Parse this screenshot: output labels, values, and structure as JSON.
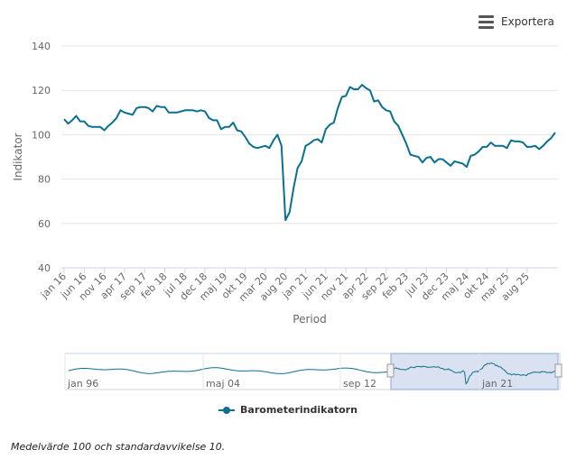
{
  "toolbar": {
    "export_label": "Exportera",
    "menu_icon": "hamburger-menu-icon"
  },
  "footnote": "Medelvärde 100 och standardavvikelse 10.",
  "colors": {
    "series": "#0b6f90",
    "navigator_mask": "#d3dced",
    "grid": "#e6e6e6"
  },
  "chart_data": {
    "type": "line",
    "title": "",
    "xlabel": "Period",
    "ylabel": "Indikator",
    "ylim": [
      40,
      140
    ],
    "y_ticks": [
      40,
      60,
      80,
      100,
      120,
      140
    ],
    "grid": true,
    "legend": "bottom-center",
    "x_start": "2016-01",
    "x_end": "2025-10",
    "x_ticks": [
      "jan 16",
      "jun 16",
      "nov 16",
      "apr 17",
      "sep 17",
      "feb 18",
      "jul 18",
      "dec 18",
      "maj 19",
      "okt 19",
      "mar 20",
      "aug 20",
      "jan 21",
      "jun 21",
      "nov 21",
      "apr 22",
      "sep 22",
      "feb 23",
      "jul 23",
      "dec 23",
      "maj 24",
      "okt 24",
      "mar 25",
      "aug 25"
    ],
    "series": [
      {
        "name": "Barometerindikatorn",
        "color": "#0b6f90",
        "values": [
          107,
          105,
          106.5,
          108.5,
          106,
          106,
          104,
          103.5,
          103.5,
          103.5,
          102,
          104,
          105.5,
          107.5,
          111,
          110,
          109.5,
          109,
          112,
          112.5,
          112.5,
          112,
          110.5,
          113,
          112.5,
          112.5,
          110,
          110,
          110,
          110.5,
          111,
          111,
          111,
          110.5,
          111,
          110.5,
          107.5,
          106.5,
          106.5,
          102.5,
          103.5,
          103.5,
          105.5,
          102,
          101.5,
          99,
          96,
          94.5,
          94,
          94.5,
          95,
          94,
          97.5,
          100,
          95,
          61.5,
          65,
          76,
          85,
          88,
          95,
          96,
          97.5,
          98,
          96.5,
          102.5,
          104.5,
          105.5,
          112,
          117,
          117.5,
          121.5,
          120.5,
          120.5,
          122.5,
          121,
          120,
          115,
          115.5,
          112.5,
          111,
          110.5,
          106,
          104,
          100,
          96,
          91,
          90.5,
          90,
          87.5,
          89.5,
          90,
          87.5,
          89,
          89,
          87.5,
          86,
          88,
          87.5,
          87,
          85.5,
          90.5,
          91,
          92.5,
          94.5,
          94.5,
          96.5,
          95,
          95,
          95,
          94,
          97.5,
          97,
          97,
          96.5,
          94.5,
          94.5,
          95,
          93.5,
          95,
          97,
          98.5,
          101
        ]
      }
    ],
    "navigator": {
      "x_labels": [
        "jan 96",
        "maj 04",
        "sep 12",
        "jan 21"
      ],
      "range_start": "2016-01",
      "range_end": "2025-10"
    }
  }
}
